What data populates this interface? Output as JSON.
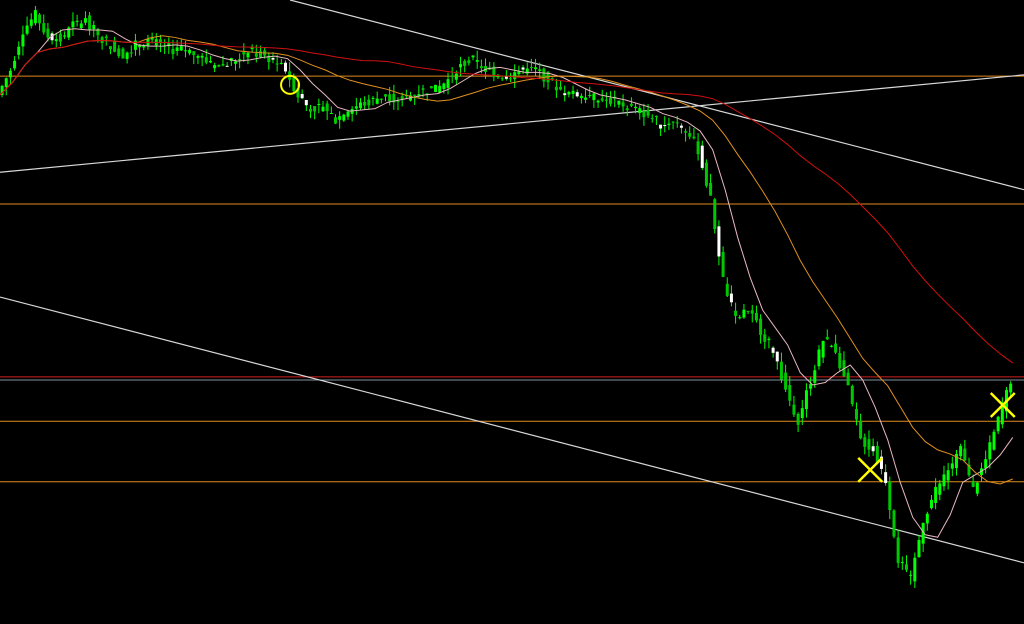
{
  "chart_data": {
    "type": "candlestick",
    "title": "",
    "xlabel": "",
    "ylabel": "",
    "grid": false,
    "background": "#000000",
    "xlim": [
      0,
      81.9
    ],
    "ylim": [
      0,
      100
    ],
    "closes": [
      84.8,
      88.8,
      95.2,
      97.6,
      94.4,
      93.6,
      96,
      96.8,
      94.4,
      92.8,
      91.2,
      92.8,
      93.6,
      92.8,
      92,
      92,
      91.2,
      89.6,
      89.6,
      90.4,
      92,
      91.2,
      90.4,
      88.8,
      84.8,
      82.4,
      83.2,
      80.8,
      82.4,
      83.2,
      84,
      84.8,
      84,
      84.8,
      85.6,
      85.6,
      87.2,
      89.6,
      90.4,
      88.8,
      88,
      88,
      88.8,
      88.8,
      87.2,
      85.6,
      84.8,
      84.8,
      84,
      84,
      83.2,
      82.4,
      81.6,
      80,
      80.8,
      79.2,
      76,
      68,
      55.1,
      48.7,
      50.3,
      47.1,
      43.9,
      37.5,
      32.7,
      39.1,
      45.5,
      43.9,
      37.5,
      29.5,
      27.9,
      23.1,
      10.3,
      7.1,
      16.7,
      21.5,
      24.7,
      27.9,
      21.5,
      26.3,
      32.7,
      39.1
    ],
    "candle_colors": {
      "up": "#00ff00",
      "down": "#00c800",
      "wick": "#00ff00"
    },
    "moving_averages": [
      {
        "period": 4,
        "color": "#e8b8c0"
      },
      {
        "period": 12,
        "color": "#e09020"
      },
      {
        "period": 30,
        "color": "#d01010"
      }
    ],
    "horizontal_lines": [
      {
        "value": 87.8,
        "color": "#e08a1e"
      },
      {
        "value": 67.3,
        "color": "#e08a1e"
      },
      {
        "value": 39.6,
        "color": "#d02020"
      },
      {
        "value": 39.1,
        "color": "#8090a0"
      },
      {
        "value": 32.5,
        "color": "#e08a1e"
      },
      {
        "value": 22.8,
        "color": "#e08a1e"
      }
    ],
    "trend_lines": [
      {
        "from": [
          0,
          72.4
        ],
        "to": [
          81.9,
          88.0
        ],
        "color": "#d8d8d8"
      },
      {
        "from": [
          23.2,
          100
        ],
        "to": [
          81.9,
          69.6
        ],
        "color": "#d8d8d8"
      },
      {
        "from": [
          0,
          52.4
        ],
        "to": [
          81.9,
          9.8
        ],
        "color": "#d8d8d8"
      }
    ],
    "markers": [
      {
        "shape": "circle",
        "x": 23.2,
        "y": 86.4,
        "color": "#ffff00"
      },
      {
        "shape": "cross",
        "x": 69.6,
        "y": 24.7,
        "color": "#ffff00"
      },
      {
        "shape": "cross",
        "x": 80.2,
        "y": 35.1,
        "color": "#ffff00"
      }
    ]
  }
}
